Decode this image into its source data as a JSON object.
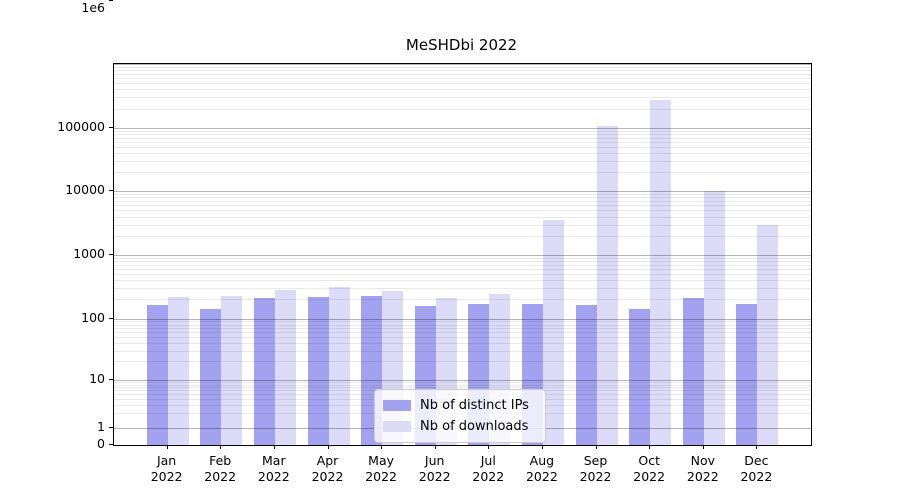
{
  "chart_data": {
    "type": "bar",
    "title": "MeSHDbi 2022",
    "categories": [
      "Jan 2022",
      "Feb 2022",
      "Mar 2022",
      "Apr 2022",
      "May 2022",
      "Jun 2022",
      "Jul 2022",
      "Aug 2022",
      "Sep 2022",
      "Oct 2022",
      "Nov 2022",
      "Dec 2022"
    ],
    "series": [
      {
        "name": "Nb of distinct IPs",
        "color": "#a2a2f0",
        "values": [
          165,
          140,
          209,
          216,
          230,
          158,
          170,
          170,
          166,
          143,
          210,
          170
        ]
      },
      {
        "name": "Nb of downloads",
        "color": "#dcdcf9",
        "values": [
          216,
          230,
          279,
          319,
          276,
          214,
          239,
          3500,
          108000,
          275000,
          10000,
          3000
        ]
      }
    ],
    "xlabel": "",
    "ylabel": "",
    "y_scale": "symlog",
    "ylim": [
      0,
      1000000
    ],
    "y_ticks": [
      {
        "label": "1e6",
        "value": 1000000
      },
      {
        "label": "100000",
        "value": 100000
      },
      {
        "label": "10000",
        "value": 10000
      },
      {
        "label": "1000",
        "value": 1000
      },
      {
        "label": "100",
        "value": 100
      },
      {
        "label": "10",
        "value": 10
      },
      {
        "label": "1",
        "value": 1
      },
      {
        "label": "0",
        "value": 0
      }
    ],
    "grid": true,
    "legend_position": "lower center",
    "colors": {
      "grid_major": "#b6b6b6",
      "grid_minor": "#e9e9e9",
      "spine": "#000000",
      "background": "#ffffff"
    }
  }
}
